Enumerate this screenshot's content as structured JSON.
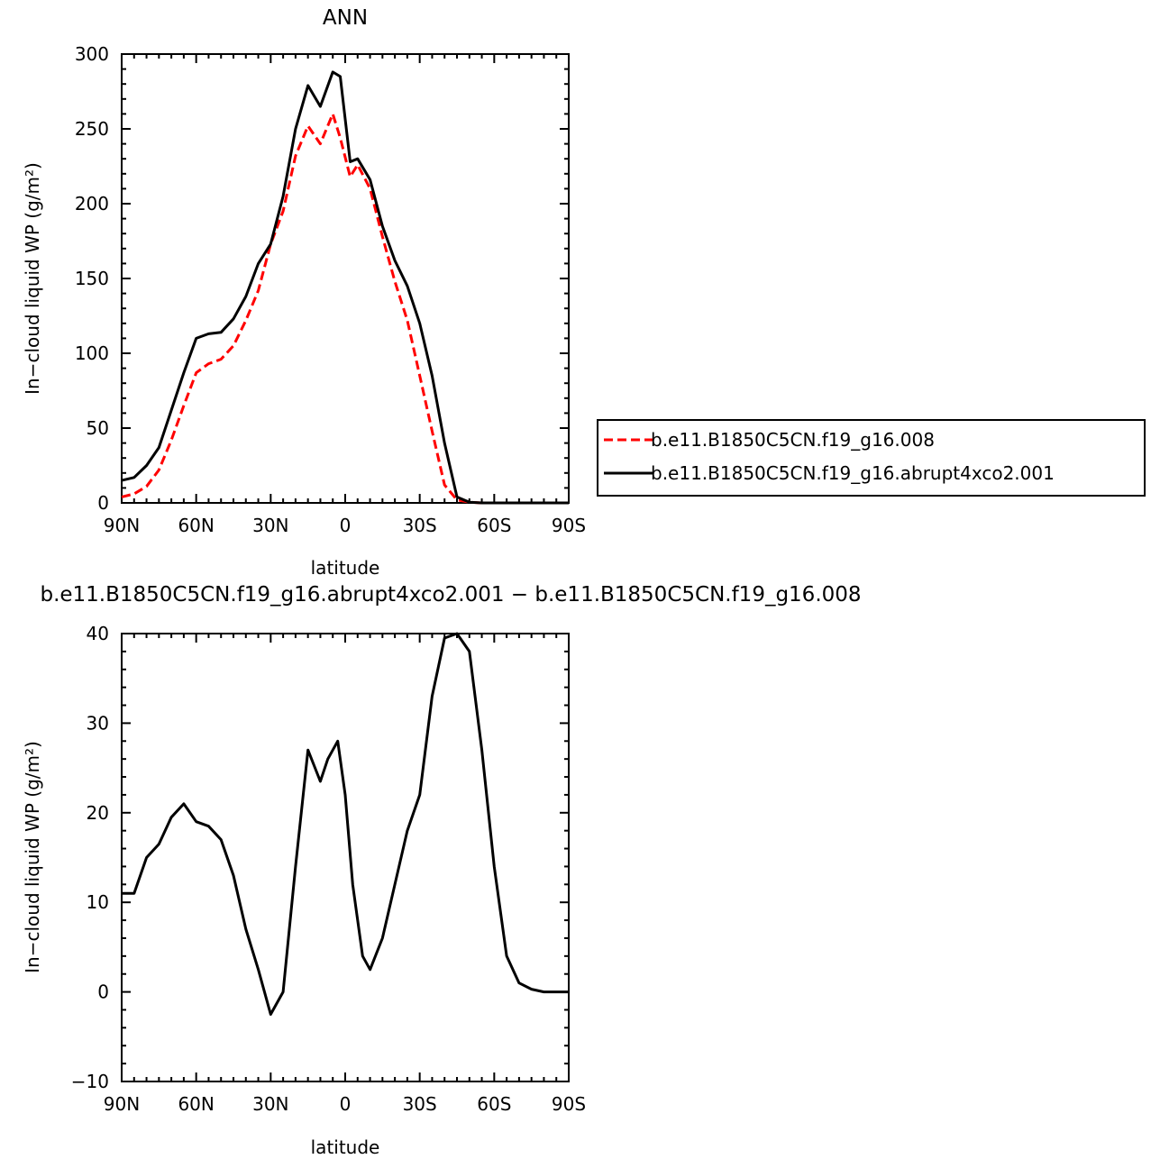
{
  "chart_data": [
    {
      "type": "line",
      "title": "ANN",
      "xlabel": "latitude",
      "ylabel": "In−cloud liquid WP (g/m²)",
      "xlim": [
        90,
        -90
      ],
      "ylim": [
        0,
        300
      ],
      "xticks": [
        90,
        60,
        30,
        0,
        -30,
        -60,
        -90
      ],
      "xtick_labels": [
        "90N",
        "60N",
        "30N",
        "0",
        "30S",
        "60S",
        "90S"
      ],
      "yticks": [
        0,
        50,
        100,
        150,
        200,
        250,
        300
      ],
      "ytick_labels": [
        "0",
        "50",
        "100",
        "150",
        "200",
        "250",
        "300"
      ],
      "x": [
        90,
        85,
        80,
        75,
        70,
        65,
        60,
        55,
        50,
        45,
        40,
        35,
        30,
        25,
        20,
        15,
        10,
        5,
        2,
        -2,
        -5,
        -10,
        -15,
        -20,
        -25,
        -30,
        -35,
        -40,
        -45,
        -50,
        -55,
        -60,
        -65,
        -70,
        -75,
        -80,
        -85,
        -90
      ],
      "series": [
        {
          "name": "b.e11.B1850C5CN.f19_g16.008",
          "color": "#ff0000",
          "dash": "dashed",
          "values": [
            4,
            6,
            11,
            22,
            42,
            65,
            87,
            93,
            96,
            105,
            122,
            142,
            173,
            195,
            232,
            252,
            240,
            260,
            244,
            218,
            226,
            210,
            178,
            148,
            122,
            85,
            48,
            12,
            2,
            0.5,
            0,
            0,
            0,
            0,
            0,
            0,
            0,
            0
          ]
        },
        {
          "name": "b.e11.B1850C5CN.f19_g16.abrupt4xco2.001",
          "color": "#000000",
          "dash": "solid",
          "values": [
            15,
            17,
            25,
            37,
            62,
            87,
            110,
            113,
            114,
            123,
            138,
            160,
            173,
            205,
            250,
            279,
            265,
            288,
            285,
            228,
            230,
            216,
            185,
            162,
            145,
            120,
            85,
            40,
            4,
            0.5,
            0,
            0,
            0,
            0,
            0,
            0,
            0,
            0
          ]
        }
      ],
      "legend": "right"
    },
    {
      "type": "line",
      "title": "b.e11.B1850C5CN.f19_g16.abrupt4xco2.001 − b.e11.B1850C5CN.f19_g16.008",
      "xlabel": "latitude",
      "ylabel": "In−cloud liquid WP (g/m²)",
      "xlim": [
        90,
        -90
      ],
      "ylim": [
        -10,
        40
      ],
      "xticks": [
        90,
        60,
        30,
        0,
        -30,
        -60,
        -90
      ],
      "xtick_labels": [
        "90N",
        "60N",
        "30N",
        "0",
        "30S",
        "60S",
        "90S"
      ],
      "yticks": [
        -10,
        0,
        10,
        20,
        30,
        40
      ],
      "ytick_labels": [
        "−10",
        "0",
        "10",
        "20",
        "30",
        "40"
      ],
      "x": [
        90,
        85,
        80,
        75,
        70,
        65,
        60,
        55,
        50,
        45,
        40,
        35,
        30,
        25,
        20,
        15,
        10,
        7,
        3,
        0,
        -3,
        -7,
        -10,
        -15,
        -20,
        -25,
        -30,
        -35,
        -40,
        -45,
        -50,
        -55,
        -60,
        -65,
        -70,
        -75,
        -80,
        -85,
        -90
      ],
      "series": [
        {
          "color": "#000000",
          "dash": "solid",
          "values": [
            11,
            11,
            15,
            16.5,
            19.5,
            21,
            19,
            18.5,
            17,
            13,
            7,
            2.5,
            -2.5,
            0,
            14,
            27,
            23.5,
            26,
            28,
            22,
            12,
            4,
            2.5,
            6,
            12,
            18,
            22,
            33,
            39.5,
            40,
            38,
            27,
            14,
            4,
            1,
            0.3,
            0,
            0,
            0
          ]
        }
      ]
    }
  ]
}
